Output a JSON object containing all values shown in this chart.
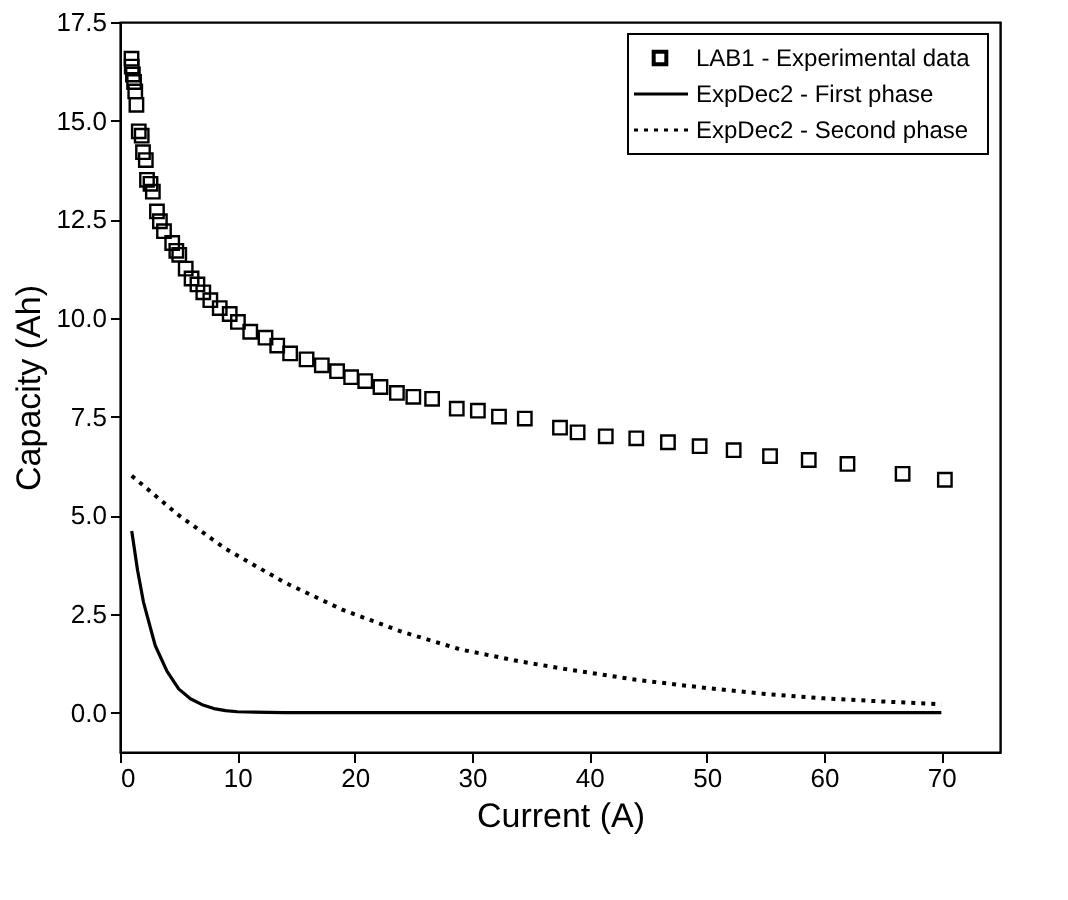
{
  "chart_data": {
    "type": "scatter",
    "xlabel": "Current (A)",
    "ylabel": "Capacity (Ah)",
    "xlim": [
      0,
      75
    ],
    "ylim": [
      -1,
      17.5
    ],
    "xticks": [
      0,
      10,
      20,
      30,
      40,
      50,
      60,
      70
    ],
    "yticks": [
      {
        "value": 0,
        "label": "0.0"
      },
      2.5,
      {
        "value": 5,
        "label": "5.0"
      },
      7.5,
      {
        "value": 10,
        "label": "10.0"
      },
      12.5,
      {
        "value": 15,
        "label": "15.0"
      },
      17.5
    ],
    "grid": false,
    "legend": "top right",
    "series": [
      {
        "name": "LAB1 - Experimental data",
        "marker": "square",
        "color": "#000000",
        "x": [
          0.98,
          1.0,
          1.1,
          1.2,
          1.3,
          1.4,
          1.6,
          1.85,
          1.96,
          2.2,
          2.3,
          2.6,
          2.8,
          3.15,
          3.4,
          3.75,
          4.45,
          4.8,
          5.05,
          5.6,
          6.1,
          6.6,
          7.1,
          7.7,
          8.5,
          9.35,
          10.05,
          11.1,
          12.4,
          13.4,
          14.5,
          15.9,
          17.2,
          18.5,
          19.7,
          20.9,
          22.2,
          23.6,
          25.0,
          26.6,
          28.7,
          30.5,
          32.3,
          34.5,
          37.5,
          39.0,
          41.4,
          44.0,
          46.7,
          49.4,
          52.3,
          55.4,
          58.7,
          62.0,
          66.7,
          70.3
        ],
        "values": [
          16.57,
          16.37,
          16.17,
          15.98,
          15.74,
          15.4,
          14.73,
          14.62,
          14.2,
          14.0,
          13.5,
          13.4,
          13.2,
          12.7,
          12.45,
          12.2,
          11.9,
          11.7,
          11.6,
          11.25,
          11.0,
          10.85,
          10.65,
          10.45,
          10.25,
          10.1,
          9.9,
          9.65,
          9.5,
          9.3,
          9.1,
          8.95,
          8.8,
          8.65,
          8.5,
          8.4,
          8.25,
          8.1,
          8.0,
          7.95,
          7.7,
          7.65,
          7.5,
          7.45,
          7.22,
          7.1,
          7.0,
          6.95,
          6.85,
          6.75,
          6.65,
          6.5,
          6.4,
          6.3,
          6.05,
          5.9
        ]
      },
      {
        "name": "ExpDec2 - First phase",
        "type": "line",
        "line_style": "solid",
        "color": "#000000",
        "x": [
          1,
          1.5,
          2,
          3,
          4,
          5,
          6,
          7,
          8,
          9,
          10,
          14,
          70
        ],
        "values": [
          4.6,
          3.6,
          2.8,
          1.7,
          1.05,
          0.6,
          0.35,
          0.2,
          0.1,
          0.05,
          0.02,
          0.0,
          0.0
        ]
      },
      {
        "name": "ExpDec2 - Second phase",
        "type": "line",
        "line_style": "dotted",
        "color": "#000000",
        "x": [
          1,
          5,
          9,
          14,
          19,
          24,
          29,
          34,
          38,
          44,
          50,
          55,
          60,
          65,
          70
        ],
        "values": [
          6.0,
          5.0,
          4.15,
          3.3,
          2.6,
          2.05,
          1.6,
          1.3,
          1.1,
          0.83,
          0.62,
          0.47,
          0.36,
          0.28,
          0.21
        ]
      }
    ]
  }
}
